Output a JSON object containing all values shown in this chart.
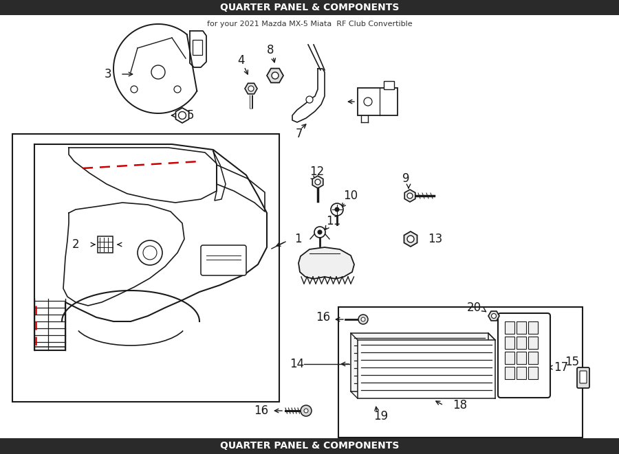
{
  "title": "QUARTER PANEL & COMPONENTS",
  "subtitle": "for your 2021 Mazda MX-5 Miata  RF Club Convertible",
  "bg_color": "#ffffff",
  "line_color": "#1a1a1a",
  "red_dash_color": "#cc0000",
  "label_fontsize": 12,
  "title_fontsize": 10,
  "figw": 9.0,
  "figh": 6.61,
  "dpi": 100
}
